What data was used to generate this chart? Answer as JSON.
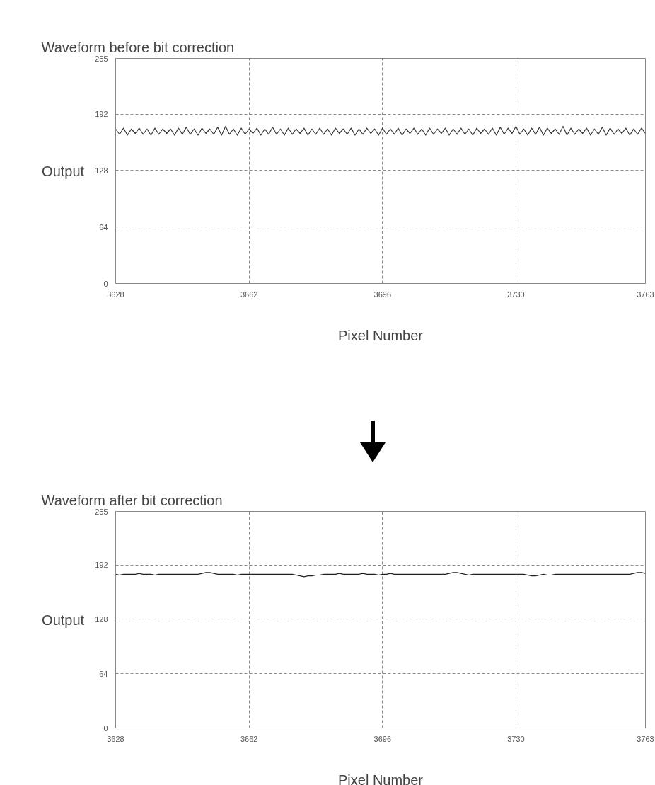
{
  "chart_data": [
    {
      "type": "line",
      "title": "Waveform before bit correction",
      "xlabel": "Pixel Number",
      "ylabel": "Output",
      "xlim": [
        3628,
        3763
      ],
      "ylim": [
        0,
        255
      ],
      "xticks": [
        3628,
        3662,
        3696,
        3730,
        3763
      ],
      "yticks": [
        0,
        64,
        128,
        192,
        255
      ],
      "grid": true,
      "x": [
        3628,
        3629,
        3630,
        3631,
        3632,
        3633,
        3634,
        3635,
        3636,
        3637,
        3638,
        3639,
        3640,
        3641,
        3642,
        3643,
        3644,
        3645,
        3646,
        3647,
        3648,
        3649,
        3650,
        3651,
        3652,
        3653,
        3654,
        3655,
        3656,
        3657,
        3658,
        3659,
        3660,
        3661,
        3662,
        3663,
        3664,
        3665,
        3666,
        3667,
        3668,
        3669,
        3670,
        3671,
        3672,
        3673,
        3674,
        3675,
        3676,
        3677,
        3678,
        3679,
        3680,
        3681,
        3682,
        3683,
        3684,
        3685,
        3686,
        3687,
        3688,
        3689,
        3690,
        3691,
        3692,
        3693,
        3694,
        3695,
        3696,
        3697,
        3698,
        3699,
        3700,
        3701,
        3702,
        3703,
        3704,
        3705,
        3706,
        3707,
        3708,
        3709,
        3710,
        3711,
        3712,
        3713,
        3714,
        3715,
        3716,
        3717,
        3718,
        3719,
        3720,
        3721,
        3722,
        3723,
        3724,
        3725,
        3726,
        3727,
        3728,
        3729,
        3730,
        3731,
        3732,
        3733,
        3734,
        3735,
        3736,
        3737,
        3738,
        3739,
        3740,
        3741,
        3742,
        3743,
        3744,
        3745,
        3746,
        3747,
        3748,
        3749,
        3750,
        3751,
        3752,
        3753,
        3754,
        3755,
        3756,
        3757,
        3758,
        3759,
        3760,
        3761,
        3762,
        3763
      ],
      "series": [
        {
          "color": "#333333",
          "values": [
            175,
            169,
            176,
            168,
            175,
            170,
            176,
            169,
            175,
            168,
            176,
            169,
            175,
            170,
            175,
            168,
            176,
            169,
            177,
            169,
            175,
            168,
            176,
            170,
            175,
            169,
            177,
            168,
            178,
            169,
            175,
            168,
            176,
            169,
            175,
            170,
            176,
            168,
            175,
            169,
            177,
            169,
            175,
            168,
            176,
            169,
            175,
            170,
            176,
            168,
            175,
            169,
            176,
            169,
            175,
            168,
            176,
            170,
            175,
            169,
            176,
            168,
            175,
            169,
            176,
            170,
            175,
            168,
            176,
            169,
            175,
            169,
            176,
            168,
            175,
            170,
            176,
            169,
            175,
            168,
            176,
            169,
            175,
            170,
            176,
            168,
            175,
            169,
            176,
            169,
            175,
            168,
            176,
            170,
            175,
            169,
            176,
            168,
            177,
            169,
            176,
            170,
            178,
            169,
            175,
            168,
            176,
            169,
            177,
            168,
            176,
            170,
            175,
            169,
            178,
            168,
            176,
            169,
            175,
            170,
            176,
            168,
            175,
            169,
            177,
            168,
            176,
            169,
            175,
            170,
            176,
            168,
            175,
            169,
            176,
            170
          ]
        }
      ]
    },
    {
      "type": "line",
      "title": "Waveform after bit correction",
      "xlabel": "Pixel Number",
      "ylabel": "Output",
      "xlim": [
        3628,
        3763
      ],
      "ylim": [
        0,
        255
      ],
      "xticks": [
        3628,
        3662,
        3696,
        3730,
        3763
      ],
      "yticks": [
        0,
        64,
        128,
        192,
        255
      ],
      "grid": true,
      "x": [
        3628,
        3629,
        3630,
        3631,
        3632,
        3633,
        3634,
        3635,
        3636,
        3637,
        3638,
        3639,
        3640,
        3641,
        3642,
        3643,
        3644,
        3645,
        3646,
        3647,
        3648,
        3649,
        3650,
        3651,
        3652,
        3653,
        3654,
        3655,
        3656,
        3657,
        3658,
        3659,
        3660,
        3661,
        3662,
        3663,
        3664,
        3665,
        3666,
        3667,
        3668,
        3669,
        3670,
        3671,
        3672,
        3673,
        3674,
        3675,
        3676,
        3677,
        3678,
        3679,
        3680,
        3681,
        3682,
        3683,
        3684,
        3685,
        3686,
        3687,
        3688,
        3689,
        3690,
        3691,
        3692,
        3693,
        3694,
        3695,
        3696,
        3697,
        3698,
        3699,
        3700,
        3701,
        3702,
        3703,
        3704,
        3705,
        3706,
        3707,
        3708,
        3709,
        3710,
        3711,
        3712,
        3713,
        3714,
        3715,
        3716,
        3717,
        3718,
        3719,
        3720,
        3721,
        3722,
        3723,
        3724,
        3725,
        3726,
        3727,
        3728,
        3729,
        3730,
        3731,
        3732,
        3733,
        3734,
        3735,
        3736,
        3737,
        3738,
        3739,
        3740,
        3741,
        3742,
        3743,
        3744,
        3745,
        3746,
        3747,
        3748,
        3749,
        3750,
        3751,
        3752,
        3753,
        3754,
        3755,
        3756,
        3757,
        3758,
        3759,
        3760,
        3761,
        3762,
        3763
      ],
      "series": [
        {
          "color": "#222222",
          "values": [
            181,
            180,
            181,
            181,
            181,
            181,
            182,
            181,
            181,
            181,
            180,
            181,
            181,
            181,
            181,
            181,
            181,
            181,
            181,
            181,
            181,
            181,
            182,
            183,
            183,
            182,
            181,
            181,
            181,
            181,
            181,
            180,
            181,
            181,
            181,
            181,
            181,
            181,
            181,
            181,
            181,
            181,
            181,
            181,
            181,
            181,
            180,
            179,
            178,
            179,
            179,
            180,
            180,
            181,
            181,
            181,
            181,
            182,
            181,
            181,
            181,
            181,
            181,
            182,
            181,
            181,
            181,
            180,
            181,
            181,
            182,
            181,
            181,
            181,
            181,
            181,
            181,
            181,
            181,
            181,
            181,
            181,
            181,
            181,
            181,
            182,
            183,
            183,
            182,
            181,
            180,
            181,
            181,
            181,
            181,
            181,
            181,
            181,
            181,
            181,
            181,
            181,
            181,
            181,
            181,
            180,
            179,
            179,
            180,
            181,
            180,
            180,
            181,
            181,
            181,
            181,
            181,
            181,
            181,
            181,
            181,
            181,
            181,
            181,
            181,
            181,
            181,
            181,
            181,
            181,
            181,
            181,
            182,
            183,
            183,
            182
          ]
        }
      ]
    }
  ]
}
